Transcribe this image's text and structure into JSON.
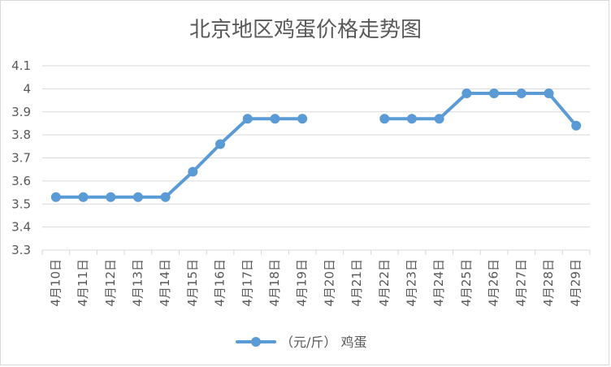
{
  "chart_data": {
    "type": "line",
    "title": "北京地区鸡蛋价格走势图",
    "categories": [
      "4月10日",
      "4月11日",
      "4月12日",
      "4月13日",
      "4月14日",
      "4月15日",
      "4月16日",
      "4月17日",
      "4月18日",
      "4月19日",
      "4月20日",
      "4月21日",
      "4月22日",
      "4月23日",
      "4月24日",
      "4月25日",
      "4月26日",
      "4月27日",
      "4月28日",
      "4月29日"
    ],
    "series": [
      {
        "name": "（元/斤） 鸡蛋",
        "color": "#5b9bd5",
        "values": [
          3.53,
          3.53,
          3.53,
          3.53,
          3.53,
          3.64,
          3.76,
          3.87,
          3.87,
          3.87,
          null,
          null,
          3.87,
          3.87,
          3.87,
          3.98,
          3.98,
          3.98,
          3.98,
          3.84
        ]
      }
    ],
    "ylim": [
      3.3,
      4.1
    ],
    "yticks": [
      3.3,
      3.4,
      3.5,
      3.6,
      3.7,
      3.8,
      3.9,
      4,
      4.1
    ],
    "grid": true,
    "legend_position": "bottom",
    "colors": {
      "line": "#5b9bd5",
      "grid": "#d9d9d9",
      "text": "#595959",
      "border": "#d9d9d9"
    }
  }
}
